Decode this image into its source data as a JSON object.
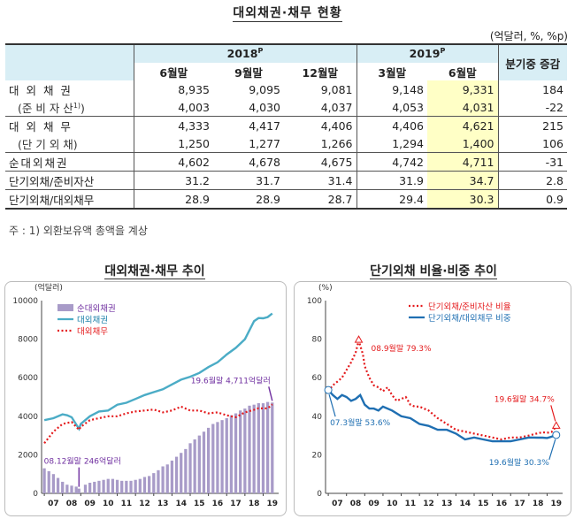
{
  "table": {
    "title": "대외채권·채무 현황",
    "unit": "(억달러, %, %p)",
    "year_2018": "2018",
    "year_2019": "2019",
    "year_suffix": "P",
    "change_header": "분기중 증감",
    "columns": [
      "6월말",
      "9월말",
      "12월말",
      "3월말",
      "6월말"
    ],
    "rows": [
      {
        "label": "대 외 채 권",
        "values": [
          "8,935",
          "9,095",
          "9,081",
          "9,148",
          "9,331"
        ],
        "change": "184"
      },
      {
        "label": "(준 비 자 산",
        "label_note": "1)",
        "label_close": ")",
        "values": [
          "4,003",
          "4,030",
          "4,037",
          "4,053",
          "4,031"
        ],
        "change": "-22"
      },
      {
        "label": "대 외 채 무",
        "values": [
          "4,333",
          "4,417",
          "4,406",
          "4,406",
          "4,621"
        ],
        "change": "215"
      },
      {
        "label": "(단 기 외 채)",
        "values": [
          "1,250",
          "1,277",
          "1,266",
          "1,294",
          "1,400"
        ],
        "change": "106"
      },
      {
        "label": "순대외채권",
        "values": [
          "4,602",
          "4,678",
          "4,675",
          "4,742",
          "4,711"
        ],
        "change": "-31"
      },
      {
        "label": "단기외채/준비자산",
        "values": [
          "31.2",
          "31.7",
          "31.4",
          "31.9",
          "34.7"
        ],
        "change": "2.8"
      },
      {
        "label": "단기외채/대외채무",
        "values": [
          "28.9",
          "28.9",
          "28.7",
          "29.4",
          "30.3"
        ],
        "change": "0.9"
      }
    ],
    "footnote": "주 : 1) 외환보유액 총액을 계상"
  },
  "chart_data": [
    {
      "type": "bar+line",
      "title": "대외채권·채무 추이",
      "ylabel": "(억달러)",
      "ylim": [
        0,
        10000
      ],
      "yticks": [
        "0",
        "2000",
        "4000",
        "6000",
        "8000",
        "10000"
      ],
      "xticks": [
        "07",
        "08",
        "09",
        "10",
        "11",
        "12",
        "13",
        "14",
        "15",
        "16",
        "17",
        "18",
        "19"
      ],
      "x_start": 2007.0,
      "x_end": 2019.5,
      "legend": [
        "순대외채권",
        "대외채권",
        "대외채무"
      ],
      "colors": {
        "bar": "#a89bc8",
        "claims": "#4bacc6",
        "debt": "#e41a1c",
        "annot": "#7030a0"
      },
      "annotations": [
        {
          "text": "19.6월말 4,711억달러",
          "x": 2019.5,
          "y": 4711
        },
        {
          "text": "08.12월말 246억달러",
          "x": 2008.9,
          "y": 246
        }
      ],
      "series": [
        {
          "name": "순대외채권",
          "kind": "bar",
          "x": [
            2007.0,
            2007.25,
            2007.5,
            2007.75,
            2008.0,
            2008.25,
            2008.5,
            2008.75,
            2008.9,
            2009.25,
            2009.5,
            2009.75,
            2010.0,
            2010.25,
            2010.5,
            2010.75,
            2011.0,
            2011.25,
            2011.5,
            2011.75,
            2012.0,
            2012.25,
            2012.5,
            2012.75,
            2013.0,
            2013.25,
            2013.5,
            2013.75,
            2014.0,
            2014.25,
            2014.5,
            2014.75,
            2015.0,
            2015.25,
            2015.5,
            2015.75,
            2016.0,
            2016.25,
            2016.5,
            2016.75,
            2017.0,
            2017.25,
            2017.5,
            2017.75,
            2018.0,
            2018.25,
            2018.5,
            2018.75,
            2019.0,
            2019.25,
            2019.5
          ],
          "values": [
            1300,
            1150,
            1000,
            800,
            600,
            450,
            400,
            350,
            246,
            450,
            550,
            600,
            650,
            700,
            750,
            750,
            700,
            650,
            650,
            650,
            700,
            750,
            850,
            900,
            1050,
            1200,
            1400,
            1500,
            1700,
            1900,
            2100,
            2300,
            2600,
            2800,
            3000,
            3200,
            3400,
            3600,
            3700,
            3800,
            3900,
            4050,
            4150,
            4300,
            4400,
            4550,
            4602,
            4678,
            4675,
            4742,
            4711
          ]
        },
        {
          "name": "대외채권",
          "kind": "line",
          "x": [
            2007.0,
            2007.5,
            2008.0,
            2008.25,
            2008.5,
            2008.9,
            2009.0,
            2009.5,
            2010.0,
            2010.5,
            2011.0,
            2011.5,
            2012.0,
            2012.5,
            2013.0,
            2013.5,
            2014.0,
            2014.5,
            2015.0,
            2015.5,
            2016.0,
            2016.5,
            2017.0,
            2017.5,
            2018.0,
            2018.5,
            2018.75,
            2019.0,
            2019.25,
            2019.5
          ],
          "values": [
            3800,
            3900,
            4100,
            4050,
            3950,
            3350,
            3600,
            4000,
            4250,
            4300,
            4600,
            4700,
            4900,
            5100,
            5250,
            5400,
            5650,
            5900,
            6050,
            6250,
            6550,
            6800,
            7200,
            7550,
            8000,
            8935,
            9095,
            9081,
            9148,
            9331
          ]
        },
        {
          "name": "대외채무",
          "kind": "line",
          "dashed": true,
          "x": [
            2007.0,
            2007.5,
            2008.0,
            2008.5,
            2008.9,
            2009.0,
            2009.5,
            2010.0,
            2010.5,
            2011.0,
            2011.5,
            2012.0,
            2012.5,
            2013.0,
            2013.5,
            2014.0,
            2014.5,
            2015.0,
            2015.5,
            2016.0,
            2016.5,
            2017.0,
            2017.5,
            2018.0,
            2018.5,
            2018.75,
            2019.0,
            2019.25,
            2019.5
          ],
          "values": [
            2600,
            3200,
            3600,
            3700,
            3300,
            3450,
            3800,
            3900,
            4000,
            4000,
            4150,
            4250,
            4300,
            4350,
            4200,
            4300,
            4500,
            4300,
            4300,
            4150,
            4200,
            4050,
            3950,
            4200,
            4333,
            4417,
            4406,
            4406,
            4621
          ]
        }
      ]
    },
    {
      "type": "line",
      "title": "단기외채 비율·비중 추이",
      "ylabel": "(%)",
      "ylim": [
        0,
        100
      ],
      "yticks": [
        "0",
        "20",
        "40",
        "60",
        "80",
        "100"
      ],
      "xticks": [
        "07",
        "08",
        "09",
        "10",
        "11",
        "12",
        "13",
        "14",
        "15",
        "16",
        "17",
        "18",
        "19"
      ],
      "x_start": 2007.0,
      "x_end": 2019.5,
      "legend": [
        "단기외채/준비자산 비율",
        "단기외채/대외채무 비중"
      ],
      "colors": {
        "ratio": "#e41a1c",
        "share": "#1f6fb2",
        "annot": "#1f6fb2"
      },
      "annotations": [
        {
          "text": "08.9월말 79.3%",
          "x": 2008.67,
          "y": 79.3,
          "color": "#e41a1c"
        },
        {
          "text": "19.6월말 34.7%",
          "x": 2019.5,
          "y": 34.7,
          "color": "#e41a1c"
        },
        {
          "text": "07.3월말 53.6%",
          "x": 2007.0,
          "y": 53.6,
          "color": "#1f6fb2"
        },
        {
          "text": "19.6월말 30.3%",
          "x": 2019.5,
          "y": 30.3,
          "color": "#1f6fb2"
        }
      ],
      "series": [
        {
          "name": "단기외채/준비자산 비율",
          "dashed": true,
          "x": [
            2007.0,
            2007.25,
            2007.5,
            2007.75,
            2008.0,
            2008.25,
            2008.5,
            2008.67,
            2008.9,
            2009.0,
            2009.25,
            2009.5,
            2009.75,
            2010.0,
            2010.25,
            2010.5,
            2010.75,
            2011.0,
            2011.25,
            2011.5,
            2011.75,
            2012.0,
            2012.5,
            2013.0,
            2013.5,
            2014.0,
            2014.5,
            2015.0,
            2015.5,
            2016.0,
            2016.5,
            2017.0,
            2017.5,
            2018.0,
            2018.5,
            2018.75,
            2019.0,
            2019.25,
            2019.5
          ],
          "values": [
            53,
            56,
            58,
            60,
            64,
            68,
            73,
            79.3,
            72,
            66,
            60,
            56,
            55,
            53,
            55,
            51,
            48,
            49,
            50,
            46,
            45,
            45,
            43,
            39,
            36,
            33,
            32,
            31,
            30,
            29,
            28,
            29,
            29,
            30,
            31.2,
            31.7,
            31.4,
            31.9,
            34.7
          ]
        },
        {
          "name": "단기외채/대외채무 비중",
          "dashed": false,
          "x": [
            2007.0,
            2007.25,
            2007.5,
            2007.75,
            2008.0,
            2008.25,
            2008.5,
            2008.75,
            2009.0,
            2009.25,
            2009.5,
            2009.75,
            2010.0,
            2010.5,
            2011.0,
            2011.5,
            2012.0,
            2012.5,
            2013.0,
            2013.5,
            2014.0,
            2014.5,
            2015.0,
            2015.5,
            2016.0,
            2016.5,
            2017.0,
            2017.5,
            2018.0,
            2018.5,
            2018.75,
            2019.0,
            2019.25,
            2019.5
          ],
          "values": [
            53.6,
            51,
            49,
            51,
            50,
            48,
            49,
            51,
            46,
            44,
            44,
            43,
            45,
            43,
            40,
            39,
            36,
            35,
            33,
            33,
            31,
            28,
            29,
            28,
            27,
            27,
            27,
            28,
            29,
            28.9,
            28.9,
            28.7,
            29.4,
            30.3
          ]
        }
      ]
    }
  ]
}
